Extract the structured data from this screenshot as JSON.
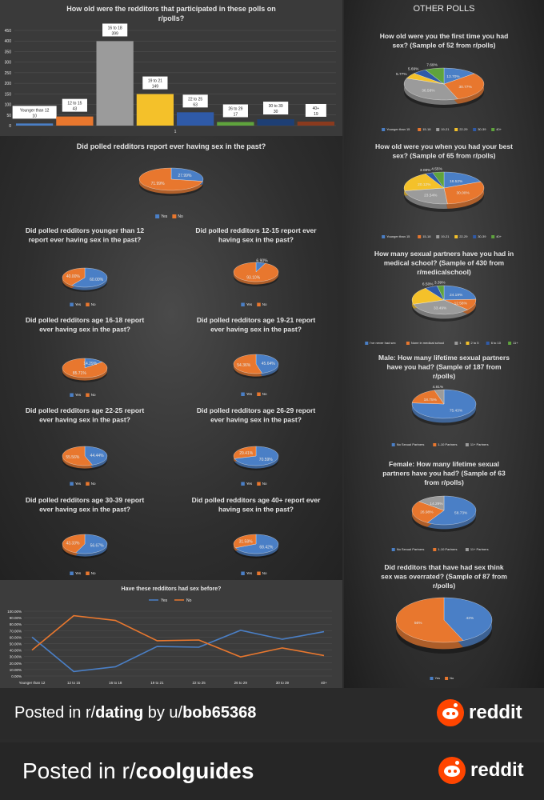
{
  "colors": {
    "blue": "#4a7fc6",
    "orange": "#e8772e",
    "gray": "#9b9b9b",
    "yellow": "#f4c12a",
    "darkblue": "#2f5aa8",
    "green": "#5fa33d",
    "navy": "#1e3f75",
    "brown": "#8a3a1e",
    "lightblue": "#6ea0d8",
    "teal": "#3f8f8f"
  },
  "headers": {
    "other_polls": "OTHER POLLS"
  },
  "chart_data": [
    {
      "id": "ages",
      "type": "bar",
      "title": "How old were the redditors that participated in these polls on r/polls?",
      "ylim": [
        0,
        450
      ],
      "yticks": [
        0,
        50,
        100,
        150,
        200,
        250,
        300,
        350,
        400,
        450
      ],
      "xlabel": "1",
      "categories": [
        "Younger than 12",
        "12 to 15",
        "16 to 18",
        "19 to 21",
        "22 to 25",
        "26 to 29",
        "30 to 39",
        "40+"
      ],
      "values": [
        10,
        43,
        399,
        149,
        63,
        17,
        30,
        19
      ]
    },
    {
      "id": "all",
      "type": "pie",
      "title": "Did polled redditors report ever having sex in the past?",
      "legend": [
        "Yes",
        "No"
      ],
      "labels": [
        "27.99%",
        "71.99%"
      ],
      "values": [
        27.99,
        71.99
      ]
    },
    {
      "id": "u12",
      "type": "pie",
      "title": "Did polled redditors younger than 12 report ever having sex in the past?",
      "legend": [
        "Yes",
        "No"
      ],
      "labels": [
        "60.00%",
        "40.00%"
      ],
      "values": [
        60,
        40
      ]
    },
    {
      "id": "a12",
      "type": "pie",
      "title": "Did polled redditors 12-15 report ever having sex in the past?",
      "legend": [
        "Yes",
        "No"
      ],
      "labels": [
        "6.90%",
        "93.10%"
      ],
      "values": [
        6.9,
        93.1
      ]
    },
    {
      "id": "a16",
      "type": "pie",
      "title": "Did polled redditors age 16-18 report ever having sex in the past?",
      "legend": [
        "Yes",
        "No"
      ],
      "labels": [
        "14.29%",
        "85.71%"
      ],
      "values": [
        14.29,
        85.71
      ]
    },
    {
      "id": "a19",
      "type": "pie",
      "title": "Did polled redditors age 19-21 report ever having sex in the past?",
      "legend": [
        "Yes",
        "No"
      ],
      "labels": [
        "45.64%",
        "54.36%"
      ],
      "values": [
        45.64,
        54.36
      ]
    },
    {
      "id": "a22",
      "type": "pie",
      "title": "Did polled redditors age 22-25 report ever having sex in the past?",
      "legend": [
        "Yes",
        "No"
      ],
      "labels": [
        "44.44%",
        "55.56%"
      ],
      "values": [
        44.44,
        55.56
      ]
    },
    {
      "id": "a26",
      "type": "pie",
      "title": "Did polled redditors age 26-29 report ever having sex in the past?",
      "legend": [
        "Yes",
        "No"
      ],
      "labels": [
        "70.59%",
        "29.41%"
      ],
      "values": [
        70.59,
        29.41
      ]
    },
    {
      "id": "a30",
      "type": "pie",
      "title": "Did polled redditors age 30-39 report ever having sex in the past?",
      "legend": [
        "Yes",
        "No"
      ],
      "labels": [
        "56.67%",
        "43.33%"
      ],
      "values": [
        56.67,
        43.33
      ]
    },
    {
      "id": "a40",
      "type": "pie",
      "title": "Did polled redditors age 40+ report ever having sex in the past?",
      "legend": [
        "Yes",
        "No"
      ],
      "labels": [
        "68.42%",
        "31.58%"
      ],
      "values": [
        68.42,
        31.58
      ]
    },
    {
      "id": "line",
      "type": "line",
      "title": "Have these redditors had sex before?",
      "legend": [
        "Yes",
        "No"
      ],
      "categories": [
        "Younger than 12",
        "12 to 15",
        "16 to 18",
        "19 to 21",
        "22 to 25",
        "26 to 29",
        "30 to 39",
        "40+"
      ],
      "yticks": [
        "0.00%",
        "10.00%",
        "20.00%",
        "30.00%",
        "40.00%",
        "50.00%",
        "60.00%",
        "70.00%",
        "80.00%",
        "90.00%",
        "100.00%"
      ],
      "series": [
        {
          "name": "Yes",
          "values": [
            60,
            6.9,
            14.29,
            45.64,
            44.44,
            70.59,
            56.67,
            68.42
          ]
        },
        {
          "name": "No",
          "values": [
            40,
            93.1,
            85.71,
            54.36,
            55.56,
            29.41,
            43.33,
            31.58
          ]
        }
      ]
    },
    {
      "id": "first",
      "type": "pie",
      "title": "How old were you the first time you had sex? (Sample of 52 from r/polls)",
      "legend": [
        "Younger than 15",
        "15-18",
        "19-21",
        "22-29",
        "30-39",
        "40+"
      ],
      "labels": [
        "13.70%",
        "30.77%",
        "36.58%",
        "5.77%",
        "5.69%",
        "7.69%"
      ],
      "values": [
        13.7,
        30.77,
        36.58,
        5.77,
        5.69,
        7.69
      ]
    },
    {
      "id": "best",
      "type": "pie",
      "title": "How old were you when you had your best sex? (Sample of 65 from r/polls)",
      "legend": [
        "Younger than 15",
        "15-18",
        "19-21",
        "22-29",
        "30-39",
        "40+"
      ],
      "labels": [
        "18.52%",
        "30.00%",
        "23.54%",
        "20.12%",
        "3.08%",
        "4.55%"
      ],
      "values": [
        18.52,
        30,
        23.54,
        20.12,
        3.08,
        4.55
      ]
    },
    {
      "id": "med",
      "type": "pie",
      "title": "How many sexual partners have you had in medical school? (Sample of 430 from r/medicalschool)",
      "legend": [
        "I've never had sex",
        "None in medical school",
        "1",
        "2 to 5",
        "6 to 10",
        "11+"
      ],
      "labels": [
        "24.19%",
        "12.58%",
        "33.49%",
        "",
        "6.50%",
        "3.39%"
      ],
      "values": [
        24.19,
        12.58,
        33.49,
        19.85,
        6.5,
        3.39
      ]
    },
    {
      "id": "male",
      "type": "pie",
      "title": "Male: How many lifetime sexual partners have you had? (Sample of 187 from r/polls)",
      "legend": [
        "No Sexual Partners",
        "1-10 Partners",
        "11+ Partners"
      ],
      "labels": [
        "75.43%",
        "18.75%",
        "4.81%"
      ],
      "values": [
        75.43,
        18.75,
        4.81
      ]
    },
    {
      "id": "female",
      "type": "pie",
      "title": "Female: How many lifetime sexual partners have you had? (Sample of 63 from r/polls)",
      "legend": [
        "No Sexual Partners",
        "1-10 Partners",
        "11+ Partners"
      ],
      "labels": [
        "58.73%",
        "26.98%",
        "14.29%"
      ],
      "values": [
        58.73,
        26.98,
        14.29
      ]
    },
    {
      "id": "overrated",
      "type": "pie",
      "title": "Did redditors that have had sex think sex was overrated? (Sample of 87 from r/polls)",
      "legend": [
        "Yes",
        "No"
      ],
      "labels": [
        "43%",
        "56%"
      ],
      "values": [
        43,
        56
      ]
    }
  ],
  "footer1": {
    "prefix": "Posted in r/",
    "sub": "dating",
    "by": " by u/",
    "user": "bob65368",
    "brand": "reddit"
  },
  "footer2": {
    "prefix": "Posted in r/",
    "sub": "coolguides",
    "brand": "reddit"
  }
}
